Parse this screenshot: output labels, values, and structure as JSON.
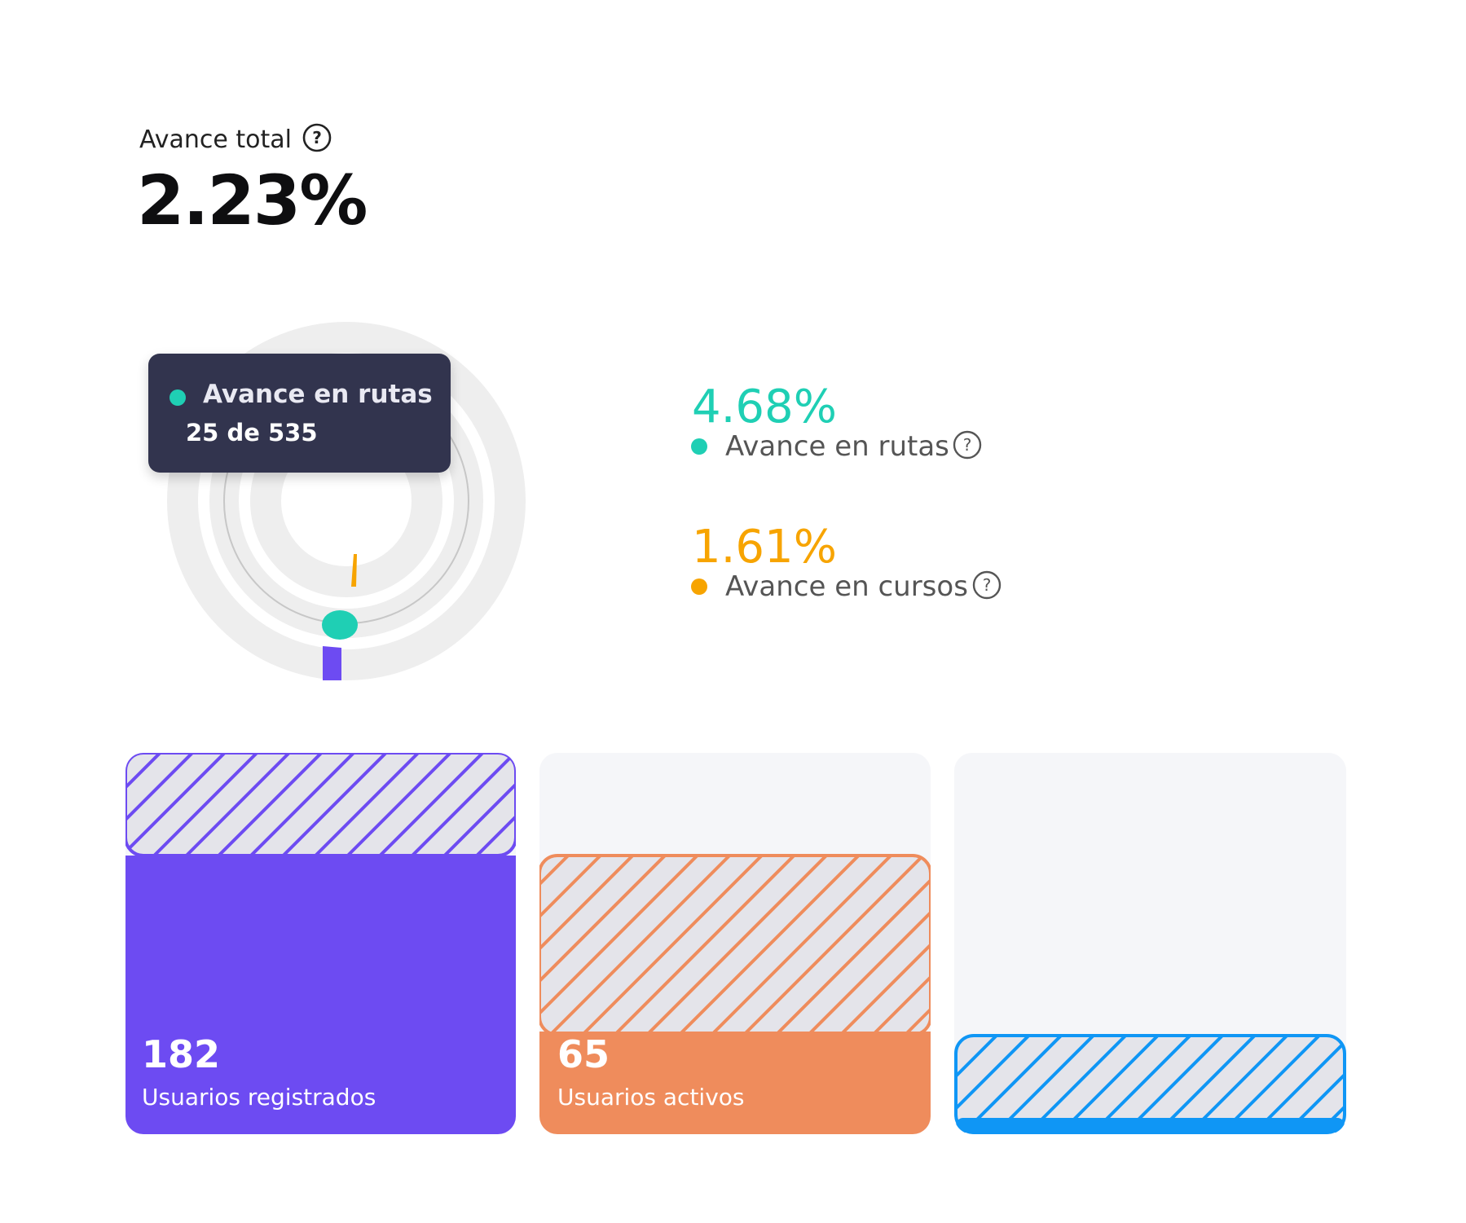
{
  "total": {
    "label": "Avance total",
    "value": "2.23%",
    "help_icon": "question-circle-icon"
  },
  "radial_chart": {
    "tooltip": {
      "series": "Avance en rutas",
      "detail": "25 de 535"
    }
  },
  "metrics": [
    {
      "value": "4.68%",
      "label": "Avance en rutas",
      "color": "#1fcfb4",
      "help_icon": "question-circle-icon"
    },
    {
      "value": "1.61%",
      "label": "Avance en cursos",
      "color": "#f7a400",
      "help_icon": "question-circle-icon"
    }
  ],
  "cards": [
    {
      "value": "182",
      "label": "Usuarios registrados",
      "color": "#6d4bf2",
      "fill_fraction": 0.73
    },
    {
      "value": "65",
      "label": "Usuarios activos",
      "color": "#ef8c5c",
      "fill_fraction": 0.26
    },
    {
      "value": "",
      "label": "",
      "color": "#0f96f5",
      "fill_fraction": 0.04
    }
  ],
  "colors": {
    "track": "#eeeeee",
    "tooltip_bg": "#32344e",
    "total_segment": "#6d4bf2"
  }
}
